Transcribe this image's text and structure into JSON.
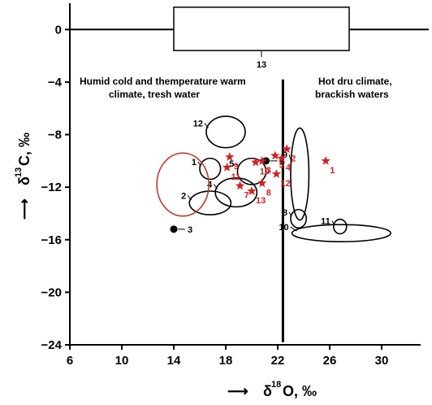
{
  "chart_data": {
    "type": "scatter",
    "xlim": [
      6,
      33
    ],
    "ylim": [
      -24,
      2
    ],
    "xticks": [
      6,
      10,
      14,
      18,
      22,
      26,
      30
    ],
    "yticks": [
      0,
      -4,
      -8,
      -12,
      -16,
      -20,
      -24
    ],
    "xtick_labels": [
      "6",
      "10",
      "14",
      "18",
      "22",
      "26",
      "30"
    ],
    "ytick_labels": [
      "0",
      "−4",
      "−8",
      "−12",
      "−16",
      "−20",
      "−24"
    ],
    "xlabel": {
      "arrow": "⟶",
      "prefix": "δ",
      "sup": "18",
      "main": "O, ‰"
    },
    "ylabel": {
      "arrow": "⟶",
      "prefix": "δ",
      "sup": "13",
      "main": "C, ‰"
    },
    "annotations": [
      {
        "line1": "Humid cold and themperature warm",
        "line2": "climate, tresh water"
      },
      {
        "line1": "Hot dru climate,",
        "line2": "brackish waters"
      }
    ],
    "zero_line": 0,
    "boundary_x": 22.4,
    "colors": {
      "black": "#000000",
      "red": "#c0392b",
      "star": "#d42020"
    },
    "rect_fields": [
      {
        "label": "13",
        "x": [
          14,
          27.5
        ],
        "y": [
          -1.6,
          1.7
        ]
      }
    ],
    "ellipse_fields": [
      {
        "label": "1",
        "cx": 16.8,
        "cy": -10.6,
        "rx": 0.8,
        "ry": 0.8,
        "color": "black"
      },
      {
        "label": "2",
        "cx": 16.8,
        "cy": -13.2,
        "rx": 1.6,
        "ry": 0.9,
        "color": "black"
      },
      {
        "label": "4",
        "cx": 18.8,
        "cy": -12.4,
        "rx": 1.6,
        "ry": 1.1,
        "color": "black"
      },
      {
        "label": "5",
        "cx": 20.0,
        "cy": -10.8,
        "rx": 1.1,
        "ry": 1.0,
        "color": "black"
      },
      {
        "label": "12",
        "cx": 18.0,
        "cy": -7.8,
        "rx": 1.5,
        "ry": 1.2,
        "color": "black"
      },
      {
        "label": "9",
        "cx": 23.7,
        "cy": -11.0,
        "rx": 0.7,
        "ry": 3.5,
        "color": "black"
      },
      {
        "label": "8",
        "cx": 23.6,
        "cy": -14.4,
        "rx": 0.6,
        "ry": 0.7,
        "color": "black"
      },
      {
        "label": "11",
        "cx": 26.8,
        "cy": -15.0,
        "rx": 0.5,
        "ry": 0.55,
        "color": "black"
      },
      {
        "label": "10",
        "cx": 26.9,
        "cy": -15.5,
        "rx": 3.8,
        "ry": 0.65,
        "color": "black"
      },
      {
        "label": "",
        "cx": 14.7,
        "cy": -11.8,
        "rx": 2.0,
        "ry": 2.4,
        "color": "red"
      }
    ],
    "series": [
      {
        "name": "black points",
        "points": [
          {
            "label": "3",
            "x": 14.0,
            "y": -15.2
          },
          {
            "label": "6",
            "x": 21.1,
            "y": -10.0
          }
        ]
      },
      {
        "name": "red stars",
        "points": [
          {
            "label": "1",
            "x": 25.7,
            "y": -10.0
          },
          {
            "label": "2",
            "x": 22.7,
            "y": -9.1
          },
          {
            "label": "3",
            "x": 20.8,
            "y": -10.0
          },
          {
            "label": "4",
            "x": 22.3,
            "y": -9.8
          },
          {
            "label": "5",
            "x": 21.8,
            "y": -9.6
          },
          {
            "label": "7",
            "x": 19.1,
            "y": -11.9
          },
          {
            "label": "8",
            "x": 20.8,
            "y": -11.7
          },
          {
            "label": "9",
            "x": 18.3,
            "y": -9.7
          },
          {
            "label": "10",
            "x": 20.3,
            "y": -10.1
          },
          {
            "label": "11",
            "x": 18.1,
            "y": -10.5
          },
          {
            "label": "12",
            "x": 21.9,
            "y": -11.0
          },
          {
            "label": "13",
            "x": 20.0,
            "y": -12.3
          }
        ]
      }
    ]
  }
}
